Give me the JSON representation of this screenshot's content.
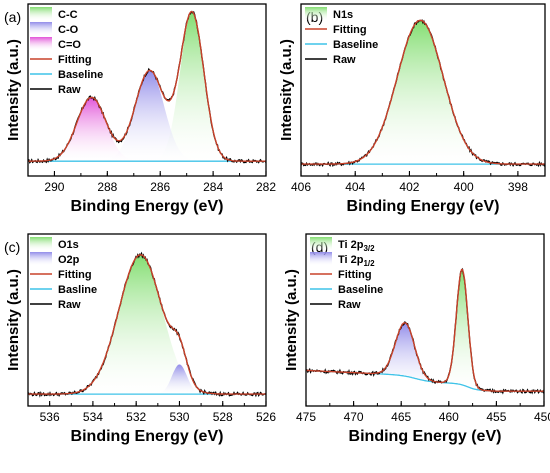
{
  "chart_data": [
    {
      "panel": "(a)",
      "type": "area",
      "xlabel": "Binding Energy (eV)",
      "ylabel": "Intensity (a.u.)",
      "xlim": [
        291,
        282
      ],
      "x_reversed": true,
      "x_ticks": [
        290,
        288,
        286,
        284,
        282
      ],
      "y_ticks_labeled": false,
      "legend_position": "top-left",
      "baseline_y": 0.02,
      "peaks": [
        {
          "name": "C-C",
          "center": 284.8,
          "height": 1.0,
          "sigma": 0.45,
          "color": "#7ddc6a"
        },
        {
          "name": "C-O",
          "center": 286.4,
          "height": 0.61,
          "sigma": 0.55,
          "color": "#8c86e8"
        },
        {
          "name": "C=O",
          "center": 288.6,
          "height": 0.43,
          "sigma": 0.55,
          "color": "#e04ad6"
        }
      ],
      "series": [
        {
          "name": "Fitting",
          "color": "#c8422a"
        },
        {
          "name": "Baseline",
          "color": "#3fc3e8"
        },
        {
          "name": "Raw",
          "color": "#000000"
        }
      ]
    },
    {
      "panel": "(b)",
      "type": "area",
      "xlabel": "Binding Energy (eV)",
      "ylabel": "Intensity (a.u.)",
      "xlim": [
        406,
        397
      ],
      "x_reversed": true,
      "x_ticks": [
        406,
        404,
        402,
        400,
        398
      ],
      "y_ticks_labeled": false,
      "legend_position": "top-left",
      "baseline_y": 0.0,
      "peaks": [
        {
          "name": "N1s",
          "center": 401.6,
          "height": 0.97,
          "sigma": 0.85,
          "color": "#7ddc6a"
        }
      ],
      "series": [
        {
          "name": "Fitting",
          "color": "#c8422a"
        },
        {
          "name": "Baseline",
          "color": "#3fc3e8"
        },
        {
          "name": "Raw",
          "color": "#000000"
        }
      ]
    },
    {
      "panel": "(c)",
      "type": "area",
      "xlabel": "Binding Energy (eV)",
      "ylabel": "Intensity (a.u.)",
      "xlim": [
        537,
        526
      ],
      "x_reversed": true,
      "x_ticks": [
        536,
        534,
        532,
        530,
        528,
        526
      ],
      "y_ticks_labeled": false,
      "legend_position": "top-left",
      "baseline_y": 0.0,
      "peaks": [
        {
          "name": "O1s",
          "center": 531.8,
          "height": 0.94,
          "sigma": 1.0,
          "color": "#7ddc6a"
        },
        {
          "name": "O2p",
          "center": 530.0,
          "height": 0.2,
          "sigma": 0.35,
          "color": "#8c86e8"
        }
      ],
      "series": [
        {
          "name": "Fitting",
          "color": "#c8422a"
        },
        {
          "name": "Basline",
          "color": "#3fc3e8"
        },
        {
          "name": "Raw",
          "color": "#000000"
        }
      ]
    },
    {
      "panel": "(d)",
      "type": "area",
      "xlabel": "Binding Energy (eV)",
      "ylabel": "Intensity (a.u.)",
      "xlim": [
        475,
        450
      ],
      "x_reversed": true,
      "x_ticks": [
        475,
        470,
        465,
        460,
        455,
        450
      ],
      "y_ticks_labeled": false,
      "legend_position": "top-left",
      "background_shape": "stepped",
      "peaks": [
        {
          "name": "Ti 2p3/2",
          "label_main": "Ti 2p",
          "label_sub": "3/2",
          "center": 458.6,
          "height": 0.78,
          "sigma": 0.6,
          "color": "#7ddc6a"
        },
        {
          "name": "Ti 2p1/2",
          "label_main": "Ti 2p",
          "label_sub": "1/2",
          "center": 464.6,
          "height": 0.36,
          "sigma": 1.0,
          "color": "#8c86e8"
        }
      ],
      "series": [
        {
          "name": "Fitting",
          "color": "#c8422a"
        },
        {
          "name": "Baseline",
          "color": "#3fc3e8"
        },
        {
          "name": "Raw",
          "color": "#000000"
        }
      ]
    }
  ]
}
